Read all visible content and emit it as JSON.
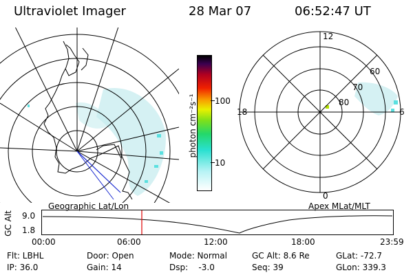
{
  "header": {
    "instrument": "Ultraviolet Imager",
    "date": "28 Mar 07",
    "time": "06:52:47 UT"
  },
  "colorbar": {
    "label": "photon cm⁻²s⁻¹",
    "ticks": [
      "100",
      "10"
    ],
    "scale": "log"
  },
  "left_plot": {
    "caption": "Geographic Lat/Lon"
  },
  "right_plot": {
    "caption": "Apex MLat/MLT",
    "mlt_labels": {
      "top": "12",
      "left": "18",
      "right": "6",
      "bottom": "0"
    },
    "lat_labels": [
      "60",
      "70",
      "80"
    ]
  },
  "altitude_plot": {
    "ylabel": "GC Alt",
    "yticks": [
      "9.0",
      "1.8"
    ],
    "xticks": [
      "00:00",
      "06:00",
      "12:00",
      "18:00",
      "23:59"
    ],
    "marker_time": "06:52:47",
    "colors": {
      "marker": "#e00000",
      "line": "#000000"
    }
  },
  "footer": {
    "flt": "Flt: LBHL",
    "ip": "IP: 36.0",
    "door": "Door: Open",
    "gain": "Gain: 14",
    "mode": "Mode: Normal",
    "dsp": "Dsp:    -3.0",
    "gcalt": "GC Alt: 8.6 Re",
    "seq": "Seq: 39",
    "glat": "GLat: -72.7",
    "glon": "GLon: 339.3"
  }
}
